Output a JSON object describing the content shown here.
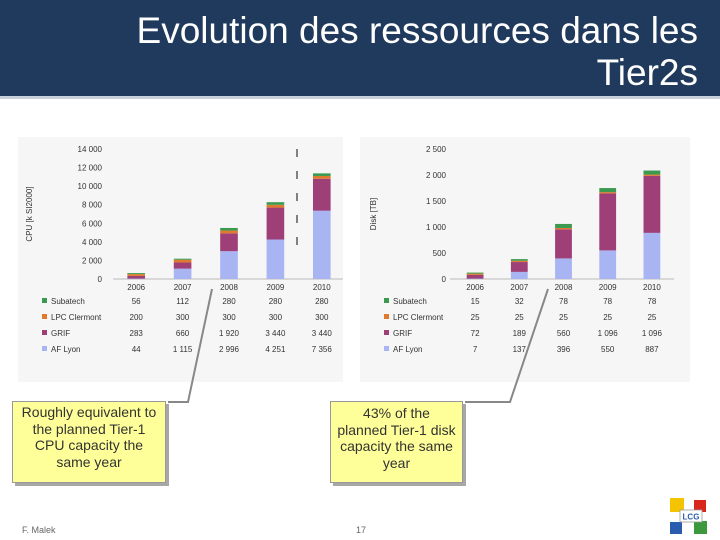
{
  "header": {
    "title": "Evolution des ressources dans les Tier2s"
  },
  "colors": {
    "header_bg": "#1f3a5c",
    "Subatech": "#3b9a50",
    "LPC Clermont": "#e07a2e",
    "GRIF": "#9e3f78",
    "AF Lyon": "#a9b4f2",
    "callout_bg": "#ffff99"
  },
  "callouts": [
    {
      "lines": [
        "Roughly equivalent to",
        "the planned Tier-1",
        "CPU capacity the",
        "same year"
      ]
    },
    {
      "lines": [
        "43% of the",
        "planned Tier-1 disk",
        "capacity the same",
        "year"
      ]
    }
  ],
  "footer": {
    "author": "F. Malek",
    "page": "17"
  },
  "logo": {
    "text": "LCG"
  },
  "chart_data": [
    {
      "type": "bar",
      "stacked": true,
      "ylabel": "CPU [k SI2000]",
      "ylim": [
        0,
        14000
      ],
      "yticks": [
        "0",
        "2 000",
        "4 000",
        "6 000",
        "8 000",
        "10 000",
        "12 000",
        "14 000"
      ],
      "ytick_values": [
        0,
        2000,
        4000,
        6000,
        8000,
        10000,
        12000,
        14000
      ],
      "categories": [
        "2006",
        "2007",
        "2008",
        "2009",
        "2010"
      ],
      "series": [
        {
          "name": "Subatech",
          "values": [
            56,
            112,
            280,
            280,
            280
          ],
          "labels": [
            "56",
            "112",
            "280",
            "280",
            "280"
          ]
        },
        {
          "name": "LPC Clermont",
          "values": [
            200,
            300,
            300,
            300,
            300
          ],
          "labels": [
            "200",
            "300",
            "300",
            "300",
            "300"
          ]
        },
        {
          "name": "GRIF",
          "values": [
            283,
            660,
            1920,
            3440,
            3440
          ],
          "labels": [
            "283",
            "660",
            "1 920",
            "3 440",
            "3 440"
          ]
        },
        {
          "name": "AF Lyon",
          "values": [
            44,
            1115,
            2996,
            4251,
            7356
          ],
          "labels": [
            "44",
            "1 115",
            "2 996",
            "4 251",
            "7 356"
          ]
        }
      ],
      "legend": "table-below"
    },
    {
      "type": "bar",
      "stacked": true,
      "ylabel": "Disk [TB]",
      "ylim": [
        0,
        2500
      ],
      "yticks": [
        "0",
        "500",
        "1 000",
        "1 500",
        "2 000",
        "2 500"
      ],
      "ytick_values": [
        0,
        500,
        1000,
        1500,
        2000,
        2500
      ],
      "categories": [
        "2006",
        "2007",
        "2008",
        "2009",
        "2010"
      ],
      "series": [
        {
          "name": "Subatech",
          "values": [
            15,
            32,
            78,
            78,
            78
          ],
          "labels": [
            "15",
            "32",
            "78",
            "78",
            "78"
          ]
        },
        {
          "name": "LPC Clermont",
          "values": [
            25,
            25,
            25,
            25,
            25
          ],
          "labels": [
            "25",
            "25",
            "25",
            "25",
            "25"
          ]
        },
        {
          "name": "GRIF",
          "values": [
            72,
            189,
            560,
            1096,
            1096
          ],
          "labels": [
            "72",
            "189",
            "560",
            "1 096",
            "1 096"
          ]
        },
        {
          "name": "AF Lyon",
          "values": [
            7,
            137,
            396,
            550,
            887
          ],
          "labels": [
            "7",
            "137",
            "396",
            "550",
            "887"
          ]
        }
      ],
      "legend": "table-below"
    }
  ]
}
